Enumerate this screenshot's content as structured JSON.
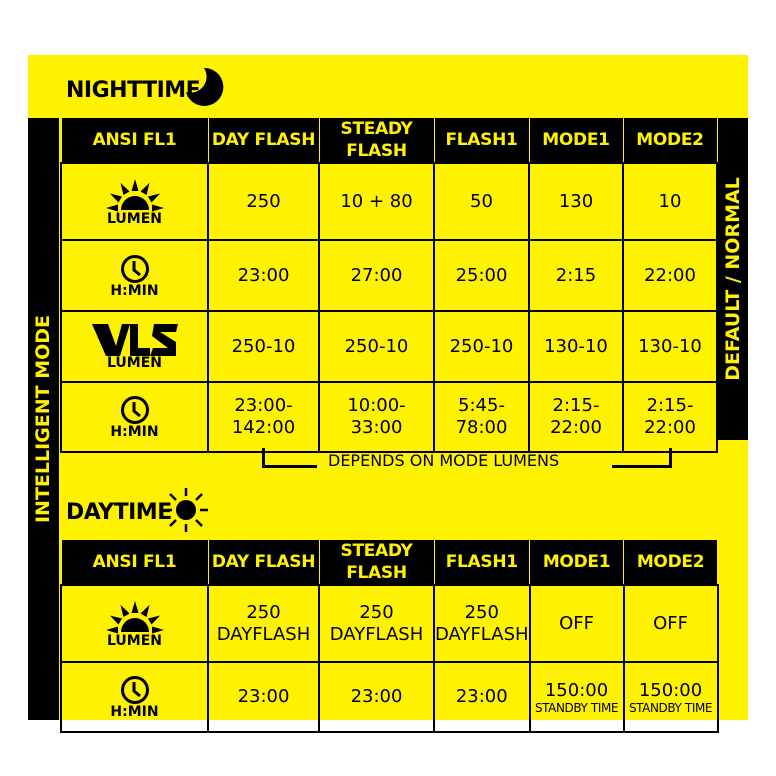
{
  "colors": {
    "yellow": "#fff200",
    "black": "#000000"
  },
  "side_labels": {
    "left": "INTELLIGENT MODE",
    "right": "DEFAULT / NORMAL"
  },
  "nighttime": {
    "title": "NIGHTTIME",
    "icon": "moon-icon",
    "headers": [
      "ANSI FL1",
      "DAY FLASH",
      "STEADY FLASH",
      "FLASH1",
      "MODE1",
      "MODE2"
    ],
    "rows": [
      {
        "icon": "sun-rising-icon",
        "label": "LUMEN",
        "cells": [
          "250",
          "10 + 80",
          "50",
          "130",
          "10"
        ]
      },
      {
        "icon": "clock-icon",
        "label": "H:MIN",
        "cells": [
          "23:00",
          "27:00",
          "25:00",
          "2:15",
          "22:00"
        ]
      },
      {
        "icon": "vls-logo",
        "label": "LUMEN",
        "cells": [
          "250-10",
          "250-10",
          "250-10",
          "130-10",
          "130-10"
        ]
      },
      {
        "icon": "clock-icon",
        "label": "H:MIN",
        "cells": [
          [
            "23:00-",
            "142:00"
          ],
          [
            "10:00-",
            "33:00"
          ],
          [
            "5:45-",
            "78:00"
          ],
          [
            "2:15-",
            "22:00"
          ],
          [
            "2:15-",
            "22:00"
          ]
        ]
      }
    ],
    "note": "DEPENDS ON MODE LUMENS"
  },
  "daytime": {
    "title": "DAYTIME",
    "icon": "sun-icon",
    "headers": [
      "ANSI FL1",
      "DAY FLASH",
      "STEADY FLASH",
      "FLASH1",
      "MODE1",
      "MODE2"
    ],
    "rows": [
      {
        "icon": "sun-rising-icon",
        "label": "LUMEN",
        "cells": [
          [
            "250",
            "DAYFLASH"
          ],
          [
            "250",
            "DAYFLASH"
          ],
          [
            "250",
            "DAYFLASH"
          ],
          [
            "OFF"
          ],
          [
            "OFF"
          ]
        ]
      },
      {
        "icon": "clock-icon",
        "label": "H:MIN",
        "cells": [
          [
            "23:00"
          ],
          [
            "23:00"
          ],
          [
            "23:00"
          ],
          [
            "150:00",
            "STANDBY TIME"
          ],
          [
            "150:00",
            "STANDBY TIME"
          ]
        ]
      }
    ]
  }
}
